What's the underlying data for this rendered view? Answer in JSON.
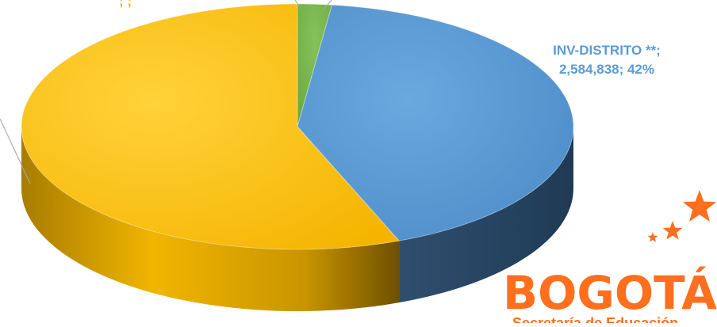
{
  "chart_data": {
    "type": "pie",
    "style": "3d",
    "series": [
      {
        "slices": [
          {
            "label": "",
            "value": null,
            "percent": 56,
            "color": "#ffc000"
          },
          {
            "label": "INV-DISTRITO **",
            "value": 2584838,
            "percent": 42,
            "color": "#5b9bd5"
          },
          {
            "label": "",
            "value": null,
            "percent": 2,
            "color": "#70ad47"
          }
        ]
      }
    ],
    "labels": {
      "blue_line1": "INV-DISTRITO **;",
      "blue_line2": "2,584,838; 42%",
      "yellow_fragment": ";",
      "green_fragment": "; ;"
    }
  },
  "logo": {
    "text": "BOGOTÁ",
    "subtitle": "Secretaría de Educación",
    "color": "#ff6f1e"
  }
}
